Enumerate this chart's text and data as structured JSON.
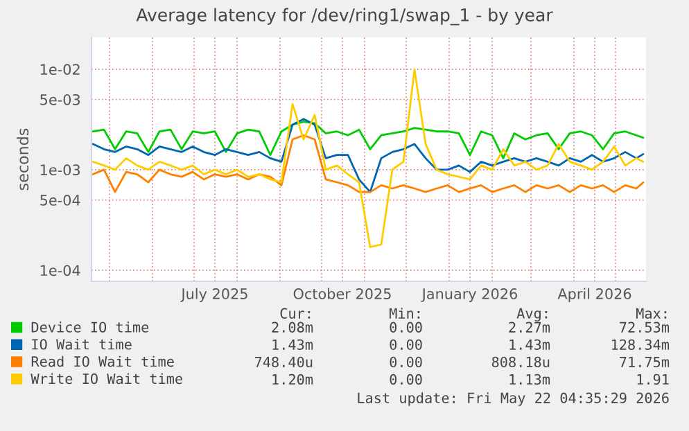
{
  "chart_data": {
    "type": "line",
    "title": "Average latency for /dev/ring1/swap_1 - by year",
    "ylabel": "seconds",
    "log": true,
    "ylim": [
      7.75e-05,
      0.0207
    ],
    "yticks": [
      {
        "value": 0.0001,
        "label": "1e-04"
      },
      {
        "value": 0.0005,
        "label": "5e-04"
      },
      {
        "value": 0.001,
        "label": "1e-03"
      },
      {
        "value": 0.005,
        "label": "5e-03"
      },
      {
        "value": 0.01,
        "label": "1e-02"
      }
    ],
    "xlim": [
      "2025-04-18",
      "2026-05-23"
    ],
    "xticks": [
      {
        "value": "2025-05-01",
        "label": null
      },
      {
        "value": "2025-06-01",
        "label": null
      },
      {
        "value": "2025-07-01",
        "label": null
      },
      {
        "value": "2025-07-16",
        "label": "July 2025"
      },
      {
        "value": "2025-08-01",
        "label": null
      },
      {
        "value": "2025-09-01",
        "label": null
      },
      {
        "value": "2025-10-01",
        "label": null
      },
      {
        "value": "2025-10-16",
        "label": "October 2025"
      },
      {
        "value": "2025-11-01",
        "label": null
      },
      {
        "value": "2025-12-01",
        "label": null
      },
      {
        "value": "2026-01-01",
        "label": null
      },
      {
        "value": "2026-01-16",
        "label": "January 2026"
      },
      {
        "value": "2026-02-01",
        "label": null
      },
      {
        "value": "2026-03-01",
        "label": null
      },
      {
        "value": "2026-04-01",
        "label": null
      },
      {
        "value": "2026-04-16",
        "label": "April 2026"
      },
      {
        "value": "2026-05-01",
        "label": null
      }
    ],
    "grid": true,
    "legend": "bottom",
    "x": [
      "2025-04-19",
      "2025-04-27",
      "2025-05-05",
      "2025-05-13",
      "2025-05-21",
      "2025-05-29",
      "2025-06-06",
      "2025-06-14",
      "2025-06-22",
      "2025-06-30",
      "2025-07-08",
      "2025-07-16",
      "2025-07-24",
      "2025-08-01",
      "2025-08-09",
      "2025-08-17",
      "2025-08-25",
      "2025-09-02",
      "2025-09-10",
      "2025-09-18",
      "2025-09-26",
      "2025-10-04",
      "2025-10-12",
      "2025-10-20",
      "2025-10-28",
      "2025-11-05",
      "2025-11-13",
      "2025-11-21",
      "2025-11-29",
      "2025-12-07",
      "2025-12-15",
      "2025-12-23",
      "2025-12-31",
      "2026-01-08",
      "2026-01-16",
      "2026-01-24",
      "2026-02-01",
      "2026-02-09",
      "2026-02-17",
      "2026-02-25",
      "2026-03-05",
      "2026-03-13",
      "2026-03-21",
      "2026-03-29",
      "2026-04-06",
      "2026-04-14",
      "2026-04-22",
      "2026-04-30",
      "2026-05-08",
      "2026-05-16",
      "2026-05-21"
    ],
    "series": [
      {
        "name": "Device IO time",
        "color": "#00cc00",
        "values": [
          0.0024,
          0.0025,
          0.0016,
          0.0024,
          0.0023,
          0.0015,
          0.0024,
          0.0025,
          0.0016,
          0.0024,
          0.0023,
          0.0024,
          0.0015,
          0.0023,
          0.0025,
          0.0024,
          0.0014,
          0.0024,
          0.0028,
          0.003,
          0.0029,
          0.0023,
          0.0024,
          0.0022,
          0.0025,
          0.0016,
          0.0022,
          0.0023,
          0.0024,
          0.0026,
          0.0025,
          0.0024,
          0.0024,
          0.0023,
          0.0014,
          0.0024,
          0.0022,
          0.0013,
          0.0023,
          0.002,
          0.0022,
          0.0023,
          0.0016,
          0.0023,
          0.0024,
          0.0022,
          0.0016,
          0.0023,
          0.0024,
          0.0022,
          0.00208
        ]
      },
      {
        "name": "IO Wait time",
        "color": "#0066b3",
        "values": [
          0.0018,
          0.0016,
          0.0015,
          0.0017,
          0.0016,
          0.0014,
          0.0017,
          0.0016,
          0.0015,
          0.0017,
          0.0015,
          0.0014,
          0.0016,
          0.0015,
          0.0014,
          0.0015,
          0.0013,
          0.0012,
          0.0028,
          0.0032,
          0.0028,
          0.0013,
          0.0014,
          0.0014,
          0.0008,
          0.0006,
          0.0013,
          0.0015,
          0.0016,
          0.0018,
          0.0013,
          0.001,
          0.001,
          0.0011,
          0.00095,
          0.0012,
          0.0011,
          0.0012,
          0.0013,
          0.0012,
          0.0013,
          0.0012,
          0.0011,
          0.0013,
          0.0012,
          0.0014,
          0.0012,
          0.0013,
          0.0015,
          0.0013,
          0.00143
        ]
      },
      {
        "name": "Read IO Wait time",
        "color": "#ff8000",
        "values": [
          0.0009,
          0.001,
          0.0006,
          0.00095,
          0.0009,
          0.00075,
          0.001,
          0.0009,
          0.00085,
          0.00095,
          0.0008,
          0.0009,
          0.00085,
          0.0009,
          0.0008,
          0.0009,
          0.00085,
          0.0007,
          0.002,
          0.0022,
          0.002,
          0.0008,
          0.00075,
          0.0007,
          0.0006,
          0.0006,
          0.0007,
          0.00065,
          0.0007,
          0.00065,
          0.0006,
          0.00065,
          0.0007,
          0.0006,
          0.00065,
          0.0007,
          0.0006,
          0.00065,
          0.0007,
          0.0006,
          0.0007,
          0.00065,
          0.0007,
          0.0006,
          0.0007,
          0.00065,
          0.0007,
          0.0006,
          0.0007,
          0.00065,
          0.000748
        ]
      },
      {
        "name": "Write IO Wait time",
        "color": "#ffcc00",
        "values": [
          0.0012,
          0.0011,
          0.001,
          0.0013,
          0.0011,
          0.001,
          0.0012,
          0.0011,
          0.001,
          0.0011,
          0.0009,
          0.001,
          0.0009,
          0.001,
          0.00085,
          0.0009,
          0.0008,
          0.00075,
          0.0045,
          0.002,
          0.0035,
          0.001,
          0.0011,
          0.0009,
          0.00075,
          0.00017,
          0.00018,
          0.001,
          0.0012,
          0.01,
          0.0018,
          0.001,
          0.0009,
          0.00085,
          0.0008,
          0.0011,
          0.001,
          0.0016,
          0.0011,
          0.0012,
          0.001,
          0.0011,
          0.0018,
          0.0012,
          0.0011,
          0.001,
          0.0012,
          0.0017,
          0.0011,
          0.0013,
          0.0012
        ]
      }
    ],
    "annotations": [
      "Cur:",
      "Min:",
      "Avg:",
      "Max:",
      "2.08m",
      "0.00",
      "2.27m",
      "72.53m",
      "1.43m",
      "0.00",
      "1.43m",
      "128.34m",
      "748.40u",
      "0.00",
      "808.18u",
      "71.75m",
      "1.20m",
      "0.00",
      "1.13m",
      "1.91",
      "Last update: Fri May 22 04:35:29 2026"
    ]
  }
}
